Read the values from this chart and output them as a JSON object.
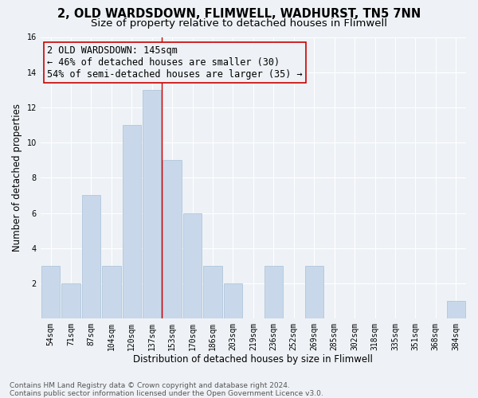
{
  "title1": "2, OLD WARDSDOWN, FLIMWELL, WADHURST, TN5 7NN",
  "title2": "Size of property relative to detached houses in Flimwell",
  "xlabel": "Distribution of detached houses by size in Flimwell",
  "ylabel": "Number of detached properties",
  "categories": [
    "54sqm",
    "71sqm",
    "87sqm",
    "104sqm",
    "120sqm",
    "137sqm",
    "153sqm",
    "170sqm",
    "186sqm",
    "203sqm",
    "219sqm",
    "236sqm",
    "252sqm",
    "269sqm",
    "285sqm",
    "302sqm",
    "318sqm",
    "335sqm",
    "351sqm",
    "368sqm",
    "384sqm"
  ],
  "values": [
    3,
    2,
    7,
    3,
    11,
    13,
    9,
    6,
    3,
    2,
    0,
    3,
    0,
    3,
    0,
    0,
    0,
    0,
    0,
    0,
    1
  ],
  "bar_color": "#c8d8ea",
  "bar_edgecolor": "#a8c0d8",
  "vline_x": 5.5,
  "vline_color": "#cc0000",
  "annotation_text": "2 OLD WARDSDOWN: 145sqm\n← 46% of detached houses are smaller (30)\n54% of semi-detached houses are larger (35) →",
  "annotation_box_edgecolor": "#cc0000",
  "ylim": [
    0,
    16
  ],
  "yticks": [
    0,
    2,
    4,
    6,
    8,
    10,
    12,
    14,
    16
  ],
  "footnote": "Contains HM Land Registry data © Crown copyright and database right 2024.\nContains public sector information licensed under the Open Government Licence v3.0.",
  "bg_color": "#eef2f6",
  "grid_color": "#ffffff",
  "title1_fontsize": 10.5,
  "title2_fontsize": 9.5,
  "axis_label_fontsize": 8.5,
  "tick_fontsize": 7,
  "footnote_fontsize": 6.5,
  "annotation_fontsize": 8.5
}
